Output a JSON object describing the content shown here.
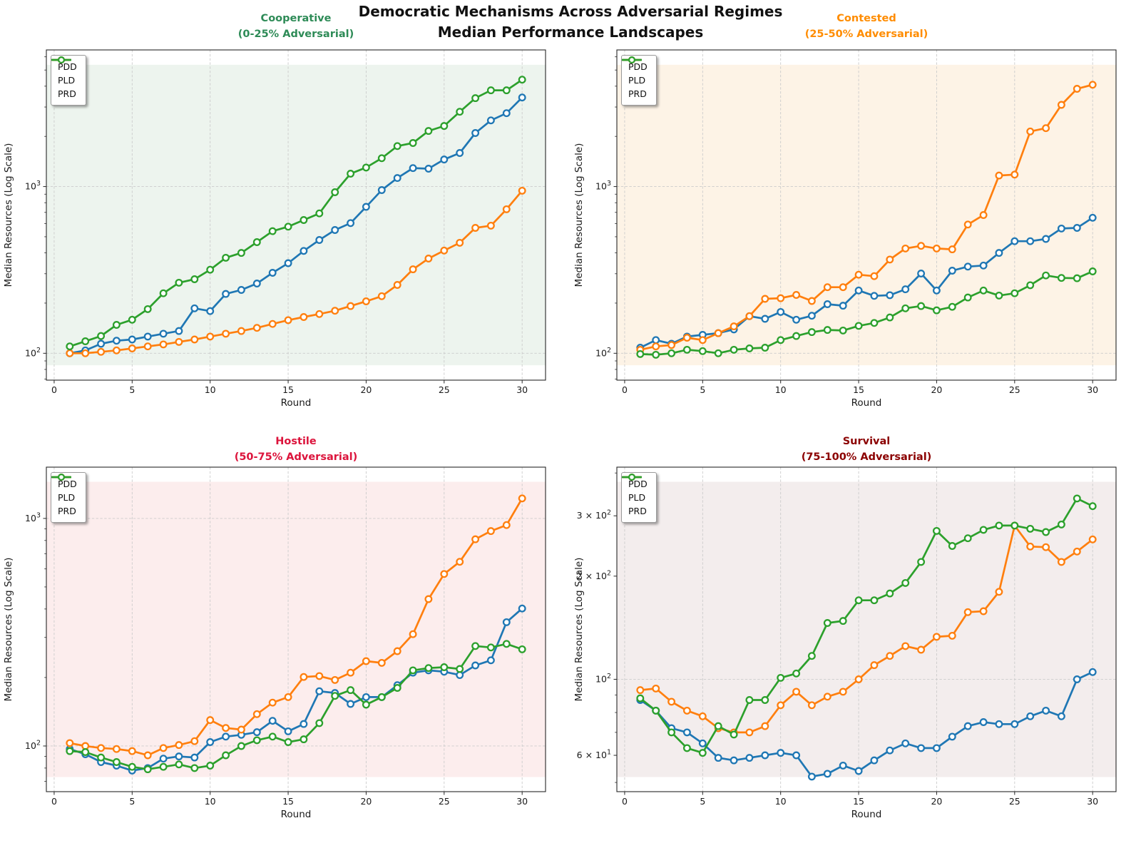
{
  "figure": {
    "suptitle_line1": "Democratic Mechanisms Across Adversarial Regimes",
    "suptitle_line2": "Median Performance Landscapes"
  },
  "legend": {
    "series": [
      {
        "label": "PDD",
        "color": "#1f77b4"
      },
      {
        "label": "PLD",
        "color": "#ff7f0e"
      },
      {
        "label": "PRD",
        "color": "#2ca02c"
      }
    ]
  },
  "shared": {
    "xlabel": "Round",
    "ylabel": "Median Resources (Log Scale)",
    "x_ticks": [
      0,
      5,
      10,
      15,
      20,
      25,
      30
    ],
    "xlim": [
      -0.5,
      31.5
    ],
    "x": [
      1,
      2,
      3,
      4,
      5,
      6,
      7,
      8,
      9,
      10,
      11,
      12,
      13,
      14,
      15,
      16,
      17,
      18,
      19,
      20,
      21,
      22,
      23,
      24,
      25,
      26,
      27,
      28,
      29,
      30
    ]
  },
  "chart_data": [
    {
      "type": "line",
      "title_line1": "Cooperative",
      "title_line2": "(0-25% Adversarial)",
      "title_color": "#2e8b57",
      "bg_tint": "#edf4ee",
      "xlabel": "Round",
      "ylabel": "Median Resources (Log Scale)",
      "ylim": [
        69,
        6600
      ],
      "y_ticks": [
        {
          "label": "10^2",
          "value": 100,
          "grid": true
        },
        {
          "label": "10^3",
          "value": 1000,
          "grid": true
        }
      ],
      "series": [
        {
          "name": "PDD",
          "color": "#1f77b4",
          "values": [
            100,
            104,
            114,
            119,
            121,
            126,
            131,
            136,
            186,
            179,
            227,
            240,
            262,
            304,
            347,
            411,
            478,
            549,
            604,
            756,
            953,
            1125,
            1290,
            1280,
            1453,
            1590,
            2094,
            2495,
            2755,
            3420
          ]
        },
        {
          "name": "PLD",
          "color": "#ff7f0e",
          "values": [
            100,
            100,
            102,
            104,
            107,
            110,
            113,
            117,
            121,
            126,
            131,
            136,
            142,
            150,
            158,
            165,
            172,
            180,
            192,
            205,
            220,
            257,
            319,
            370,
            413,
            460,
            565,
            583,
            731,
            944
          ]
        },
        {
          "name": "PRD",
          "color": "#2ca02c",
          "values": [
            110,
            118,
            127,
            148,
            159,
            184,
            229,
            265,
            278,
            317,
            374,
            400,
            464,
            540,
            575,
            630,
            690,
            925,
            1195,
            1300,
            1480,
            1750,
            1825,
            2155,
            2310,
            2810,
            3390,
            3780,
            3780,
            4375
          ]
        }
      ]
    },
    {
      "type": "line",
      "title_line1": "Contested",
      "title_line2": "(25-50% Adversarial)",
      "title_color": "#ff8c00",
      "bg_tint": "#fdf3e6",
      "xlabel": "Round",
      "ylabel": "Median Resources (Log Scale)",
      "ylim": [
        69,
        6600
      ],
      "y_ticks": [
        {
          "label": "10^2",
          "value": 100,
          "grid": true
        },
        {
          "label": "10^3",
          "value": 1000,
          "grid": true
        }
      ],
      "series": [
        {
          "name": "PDD",
          "color": "#1f77b4",
          "values": [
            108,
            120,
            114,
            126,
            129,
            132,
            139,
            167,
            161,
            177,
            159,
            168,
            197,
            193,
            238,
            221,
            223,
            242,
            301,
            238,
            313,
            331,
            336,
            400,
            470,
            470,
            485,
            560,
            565,
            650
          ]
        },
        {
          "name": "PLD",
          "color": "#ff7f0e",
          "values": [
            105,
            110,
            112,
            124,
            120,
            132,
            145,
            167,
            212,
            214,
            224,
            206,
            249,
            249,
            296,
            290,
            365,
            425,
            441,
            425,
            420,
            592,
            675,
            1165,
            1180,
            2140,
            2240,
            3090,
            3860,
            4080
          ]
        },
        {
          "name": "PRD",
          "color": "#2ca02c",
          "values": [
            99,
            98,
            100,
            105,
            103,
            100,
            105,
            107,
            108,
            120,
            127,
            134,
            138,
            137,
            146,
            152,
            164,
            186,
            192,
            181,
            190,
            216,
            238,
            222,
            229,
            256,
            293,
            283,
            282,
            310
          ]
        }
      ]
    },
    {
      "type": "line",
      "title_line1": "Hostile",
      "title_line2": "(50-75% Adversarial)",
      "title_color": "#dc143c",
      "bg_tint": "#fceded",
      "xlabel": "Round",
      "ylabel": "Median Resources (Log Scale)",
      "ylim": [
        63,
        1680
      ],
      "y_ticks": [
        {
          "label": "10^2",
          "value": 100,
          "grid": true
        },
        {
          "label": "10^3",
          "value": 1000,
          "grid": true
        }
      ],
      "series": [
        {
          "name": "PDD",
          "color": "#1f77b4",
          "values": [
            97,
            92,
            85,
            82,
            78,
            80,
            88,
            90,
            89,
            104,
            110,
            112,
            115,
            129,
            116,
            125,
            174,
            171,
            153,
            164,
            164,
            185,
            210,
            215,
            212,
            205,
            226,
            238,
            350,
            402
          ]
        },
        {
          "name": "PLD",
          "color": "#ff7f0e",
          "values": [
            103,
            100,
            98,
            97,
            95,
            91,
            98,
            101,
            105,
            130,
            120,
            118,
            138,
            155,
            164,
            201,
            203,
            195,
            210,
            236,
            232,
            261,
            310,
            442,
            570,
            645,
            810,
            880,
            935,
            1225
          ]
        },
        {
          "name": "PRD",
          "color": "#2ca02c",
          "values": [
            95,
            94,
            89,
            85,
            81,
            79,
            81,
            83,
            80,
            82,
            91,
            100,
            106,
            110,
            104,
            107,
            126,
            166,
            176,
            152,
            164,
            180,
            215,
            220,
            222,
            218,
            275,
            271,
            281,
            266
          ]
        }
      ]
    },
    {
      "type": "line",
      "title_line1": "Survival",
      "title_line2": "(75-100% Adversarial)",
      "title_color": "#8b0000",
      "bg_tint": "#f3eded",
      "xlabel": "Round",
      "ylabel": "Median Resources (Log Scale)",
      "ylim": [
        47,
        416
      ],
      "y_ticks": [
        {
          "label": "6 × 10^1",
          "value": 60,
          "grid": false
        },
        {
          "label": "10^2",
          "value": 100,
          "grid": true
        },
        {
          "label": "2 × 10^2",
          "value": 200,
          "grid": false
        },
        {
          "label": "3 × 10^2",
          "value": 300,
          "grid": false
        }
      ],
      "series": [
        {
          "name": "PDD",
          "color": "#1f77b4",
          "values": [
            87,
            81,
            72,
            70,
            65,
            59,
            58,
            59,
            60,
            61,
            60,
            52,
            53,
            56,
            54,
            58,
            62,
            65,
            63,
            63,
            68,
            73,
            75,
            74,
            74,
            78,
            81,
            78,
            100,
            105
          ]
        },
        {
          "name": "PLD",
          "color": "#ff7f0e",
          "values": [
            93,
            94,
            86,
            81,
            78,
            72,
            70,
            70,
            73,
            84,
            92,
            84,
            89,
            92,
            100,
            110,
            117,
            125,
            122,
            133,
            134,
            157,
            158,
            180,
            281,
            244,
            243,
            220,
            236,
            256
          ]
        },
        {
          "name": "PRD",
          "color": "#2ca02c",
          "values": [
            88,
            81,
            70,
            63,
            61,
            73,
            69,
            87,
            87,
            101,
            104,
            117,
            146,
            148,
            170,
            170,
            178,
            191,
            220,
            271,
            245,
            258,
            273,
            281,
            281,
            275,
            269,
            283,
            337,
            320
          ]
        }
      ]
    }
  ]
}
